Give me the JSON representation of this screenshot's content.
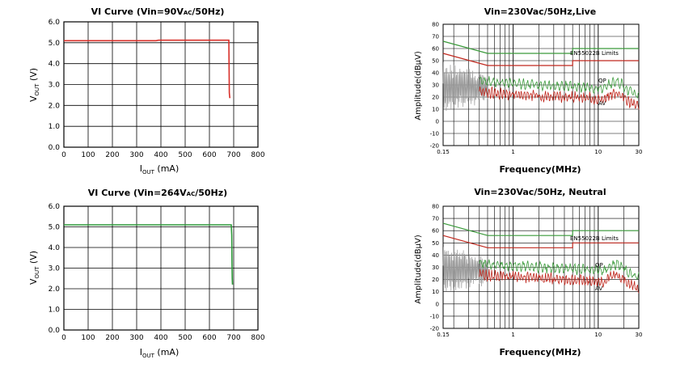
{
  "chart_data": [
    {
      "type": "line",
      "title": "VI Curve (Vin=90Vac/50Hz)",
      "title_pre": "VI Curve (Vin=90V",
      "title_sub": "AC",
      "title_post": "/50Hz)",
      "xlabel_main": "I",
      "xlabel_sub": "OUT",
      "xlabel_post": " (mA)",
      "ylabel_main": "V",
      "ylabel_sub": "OUT",
      "ylabel_post": " (V)",
      "xlim": [
        0,
        800
      ],
      "ylim": [
        0,
        6
      ],
      "xticks": [
        "0",
        "100",
        "200",
        "300",
        "400",
        "500",
        "600",
        "700",
        "800"
      ],
      "yticks": [
        "0.0",
        "1.0",
        "2.0",
        "3.0",
        "4.0",
        "5.0",
        "6.0"
      ],
      "grid": true,
      "series": [
        {
          "color": "#d8302a",
          "x": [
            0,
            380,
            390,
            680,
            682,
            684,
            684
          ],
          "y": [
            5.1,
            5.1,
            5.12,
            5.12,
            2.6,
            2.35,
            2.4
          ]
        }
      ]
    },
    {
      "type": "line",
      "title": "Vin=230Vac/50Hz,Live",
      "xlabel": "Frequency(MHz)",
      "ylabel": "Amplitude(dBμV)",
      "xscale": "log",
      "xlim": [
        0.15,
        30
      ],
      "ylim": [
        -20,
        80
      ],
      "xticks": [
        "0.15",
        "1",
        "10",
        "30"
      ],
      "yticks": [
        "-20",
        "-10",
        "0",
        "10",
        "20",
        "30",
        "40",
        "50",
        "60",
        "70",
        "80"
      ],
      "grid": true,
      "annotations": [
        "EN55022B Limits",
        "QP",
        "AV"
      ],
      "series": [
        {
          "name": "QP",
          "color": "#3a9a3a"
        },
        {
          "name": "AV",
          "color": "#c0281e"
        }
      ]
    },
    {
      "type": "line",
      "title": "VI Curve (Vin=264Vac/50Hz)",
      "title_pre": "VI Curve (Vin=264V",
      "title_sub": "AC",
      "title_post": "/50Hz)",
      "xlabel_main": "I",
      "xlabel_sub": "OUT",
      "xlabel_post": " (mA)",
      "ylabel_main": "V",
      "ylabel_sub": "OUT",
      "ylabel_post": " (V)",
      "xlim": [
        0,
        800
      ],
      "ylim": [
        0,
        6
      ],
      "xticks": [
        "0",
        "100",
        "200",
        "300",
        "400",
        "500",
        "600",
        "700",
        "800"
      ],
      "yticks": [
        "0.0",
        "1.0",
        "2.0",
        "3.0",
        "4.0",
        "5.0",
        "6.0"
      ],
      "grid": true,
      "series": [
        {
          "color": "#2e9a3a",
          "x": [
            0,
            690,
            692,
            693,
            694,
            695
          ],
          "y": [
            5.1,
            5.1,
            4.6,
            3.2,
            2.5,
            2.2
          ]
        }
      ]
    },
    {
      "type": "line",
      "title": "Vin=230Vac/50Hz, Neutral",
      "xlabel": "Frequency(MHz)",
      "ylabel": "Amplitude(dBμV)",
      "xscale": "log",
      "xlim": [
        0.15,
        30
      ],
      "ylim": [
        -20,
        80
      ],
      "xticks": [
        "0.15",
        "1",
        "10",
        "30"
      ],
      "yticks": [
        "-20",
        "-10",
        "0",
        "10",
        "20",
        "30",
        "40",
        "50",
        "60",
        "70",
        "80"
      ],
      "grid": true,
      "annotations": [
        "EN55022B Limits",
        "QP",
        "AV"
      ],
      "series": [
        {
          "name": "QP",
          "color": "#3a9a3a"
        },
        {
          "name": "AV",
          "color": "#c0281e"
        }
      ]
    }
  ]
}
